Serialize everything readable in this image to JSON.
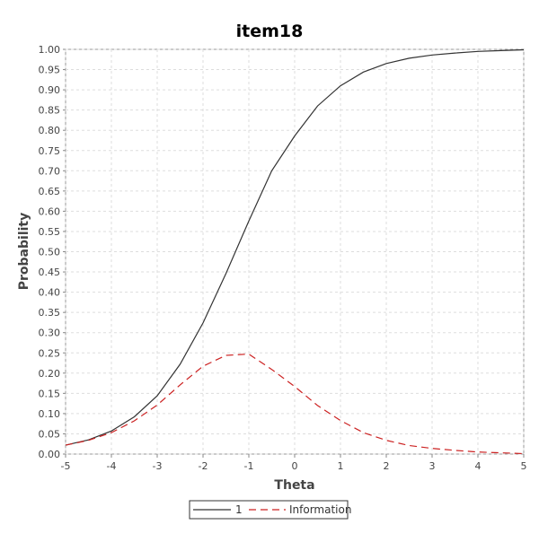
{
  "chart_data": {
    "type": "line",
    "title": "item18",
    "xlabel": "Theta",
    "ylabel": "Probability",
    "xlim": [
      -5,
      5
    ],
    "ylim": [
      0,
      1
    ],
    "xticks": [
      -5,
      -4,
      -3,
      -2,
      -1,
      0,
      1,
      2,
      3,
      4,
      5
    ],
    "yticks": [
      "0.00",
      "0.05",
      "0.10",
      "0.15",
      "0.20",
      "0.25",
      "0.30",
      "0.35",
      "0.40",
      "0.45",
      "0.50",
      "0.55",
      "0.60",
      "0.65",
      "0.70",
      "0.75",
      "0.80",
      "0.85",
      "0.90",
      "0.95",
      "1.00"
    ],
    "grid": true,
    "legend_position": "bottom-center",
    "x": [
      -5,
      -4.5,
      -4,
      -3.5,
      -3,
      -2.5,
      -2,
      -1.5,
      -1,
      -0.5,
      0,
      0.5,
      1,
      1.5,
      2,
      2.5,
      3,
      3.5,
      4,
      4.5,
      5
    ],
    "series": [
      {
        "name": "1",
        "color": "#333333",
        "style": "solid",
        "values": [
          0.022,
          0.035,
          0.057,
          0.092,
          0.144,
          0.222,
          0.324,
          0.446,
          0.576,
          0.7,
          0.786,
          0.86,
          0.91,
          0.944,
          0.965,
          0.978,
          0.986,
          0.991,
          0.995,
          0.997,
          0.999
        ]
      },
      {
        "name": "Information",
        "color": "#cc2222",
        "style": "dashed",
        "values": [
          0.022,
          0.034,
          0.053,
          0.082,
          0.121,
          0.171,
          0.217,
          0.244,
          0.247,
          0.209,
          0.167,
          0.12,
          0.083,
          0.053,
          0.034,
          0.021,
          0.014,
          0.009,
          0.005,
          0.003,
          0.001
        ]
      }
    ]
  }
}
